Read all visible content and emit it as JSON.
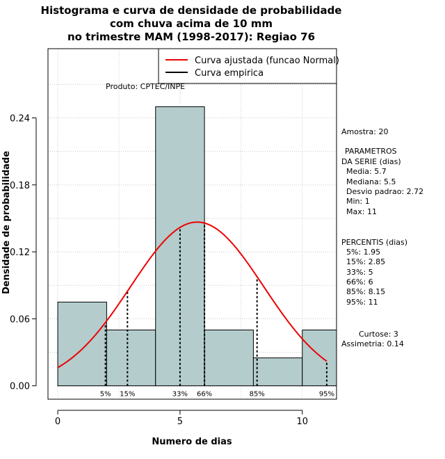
{
  "chart_data": {
    "type": "bar",
    "title_lines": [
      "Histograma e curva de densidade de probabilidade",
      "com chuva acima de 10 mm",
      "no trimestre MAM (1998-2017): Regiao 76"
    ],
    "xlabel": "Numero de dias",
    "ylabel": "Densidade de probabilidade",
    "xlim": [
      -0.4,
      11.4
    ],
    "ylim": [
      -0.012,
      0.302
    ],
    "x_ticks": [
      0,
      5,
      10
    ],
    "y_ticks": [
      0.0,
      0.06,
      0.12,
      0.18,
      0.24
    ],
    "y_tick_labels": [
      "0.00",
      "0.06",
      "0.12",
      "0.18",
      "0.24"
    ],
    "grid": true,
    "bins": [
      {
        "start": 0,
        "end": 2,
        "density": 0.075
      },
      {
        "start": 2,
        "end": 4,
        "density": 0.05
      },
      {
        "start": 4,
        "end": 6,
        "density": 0.25
      },
      {
        "start": 6,
        "end": 8,
        "density": 0.05
      },
      {
        "start": 8,
        "end": 10,
        "density": 0.025
      },
      {
        "start": 10,
        "end": 11.4,
        "density": 0.05
      }
    ],
    "bar_color": "#b4cccc",
    "normal_fit": {
      "mean": 5.7,
      "sd": 2.72,
      "x_from": 0,
      "x_to": 11,
      "color": "#ee0000"
    },
    "percentiles": [
      {
        "label": "5%",
        "value": 1.95
      },
      {
        "label": "15%",
        "value": 2.85
      },
      {
        "label": "33%",
        "value": 5
      },
      {
        "label": "66%",
        "value": 6
      },
      {
        "label": "85%",
        "value": 8.15
      },
      {
        "label": "95%",
        "value": 11
      }
    ],
    "legend": [
      {
        "label": "Curva ajustada (funcao Normal)",
        "color": "#ee0000"
      },
      {
        "label": "Curva empirica",
        "color": "#000000"
      }
    ],
    "product_label": "Produto: CPTEC/INPE"
  },
  "stats": {
    "amostra": "Amostra: 20",
    "param_title1": "PARAMETROS",
    "param_title2": "DA SERIE (dias)",
    "media": "Media: 5.7",
    "mediana": "Mediana: 5.5",
    "desvio": "Desvio padrao: 2.72",
    "min": "Min: 1",
    "max": "Max: 11",
    "percentis_title": "PERCENTIS (dias)",
    "p5": "5%: 1.95",
    "p15": "15%: 2.85",
    "p33": "33%: 5",
    "p66": "66%: 6",
    "p85": "85%: 8.15",
    "p95": "95%: 11",
    "curtose": "Curtose: 3",
    "assimetria": "Assimetria: 0.14"
  }
}
